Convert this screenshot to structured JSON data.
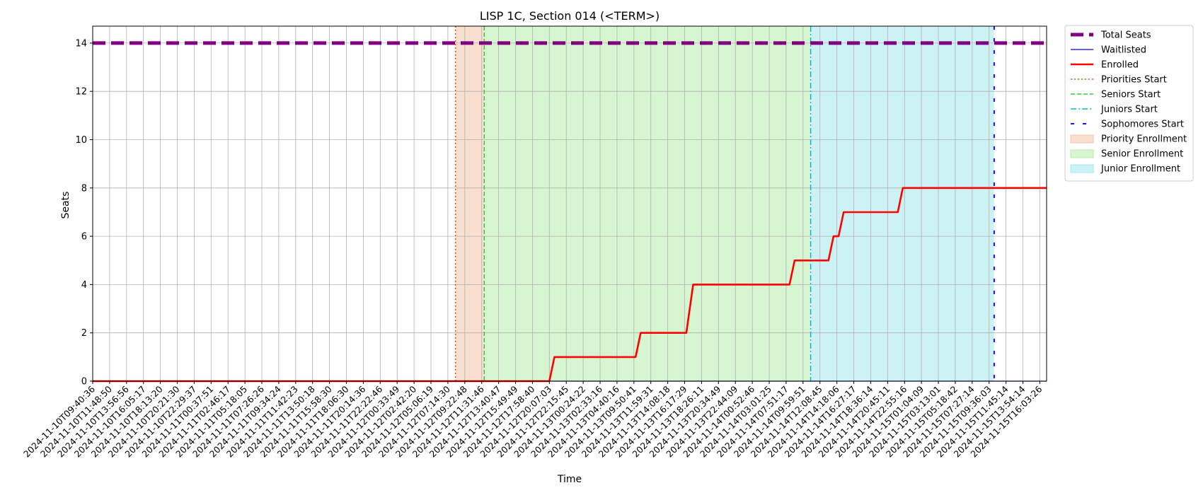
{
  "chart_data": {
    "type": "line",
    "title": "LISP 1C, Section 014 (<TERM>)",
    "xlabel": "Time",
    "ylabel": "Seats",
    "ylim": [
      0,
      14.7
    ],
    "y_ticks": [
      0,
      2,
      4,
      6,
      8,
      10,
      12,
      14
    ],
    "x_tick_labels": [
      "2024-11-10T09:40:36",
      "2024-11-10T11:48:50",
      "2024-11-10T13:56:56",
      "2024-11-10T16:05:17",
      "2024-11-10T18:13:20",
      "2024-11-10T20:21:30",
      "2024-11-10T22:29:37",
      "2024-11-11T00:37:51",
      "2024-11-11T02:46:17",
      "2024-11-11T05:18:05",
      "2024-11-11T07:26:26",
      "2024-11-11T09:34:24",
      "2024-11-11T11:42:23",
      "2024-11-11T13:50:18",
      "2024-11-11T15:58:30",
      "2024-11-11T18:06:30",
      "2024-11-11T20:14:36",
      "2024-11-11T22:22:46",
      "2024-11-12T00:33:49",
      "2024-11-12T02:42:20",
      "2024-11-12T05:06:19",
      "2024-11-12T07:14:30",
      "2024-11-12T09:22:48",
      "2024-11-12T11:31:46",
      "2024-11-12T13:40:47",
      "2024-11-12T15:49:49",
      "2024-11-12T17:58:40",
      "2024-11-12T20:07:03",
      "2024-11-12T22:15:45",
      "2024-11-13T00:24:22",
      "2024-11-13T02:33:16",
      "2024-11-13T04:40:16",
      "2024-11-13T09:50:41",
      "2024-11-13T11:59:31",
      "2024-11-13T14:08:18",
      "2024-11-13T16:17:29",
      "2024-11-13T18:26:11",
      "2024-11-13T20:34:49",
      "2024-11-13T22:44:09",
      "2024-11-14T00:52:46",
      "2024-11-14T03:01:25",
      "2024-11-14T07:51:17",
      "2024-11-14T09:59:51",
      "2024-11-14T12:08:45",
      "2024-11-14T14:18:06",
      "2024-11-14T16:27:17",
      "2024-11-14T18:36:14",
      "2024-11-14T20:45:11",
      "2024-11-14T22:55:16",
      "2024-11-15T01:04:09",
      "2024-11-15T03:13:01",
      "2024-11-15T05:18:42",
      "2024-11-15T07:27:14",
      "2024-11-15T09:36:03",
      "2024-11-15T11:45:14",
      "2024-11-15T13:54:14",
      "2024-11-15T16:03:26"
    ],
    "x_range": [
      0,
      56.4
    ],
    "grid": true,
    "legend_position": "outside upper right",
    "series": [
      {
        "name": "Total Seats",
        "style": "dashed-thick",
        "color": "#800080",
        "points": [
          [
            0,
            14
          ],
          [
            56.4,
            14
          ]
        ]
      },
      {
        "name": "Waitlisted",
        "style": "solid-thin",
        "color": "#0000ff",
        "points": [
          [
            0,
            0
          ],
          [
            56.4,
            0
          ]
        ]
      },
      {
        "name": "Enrolled",
        "style": "solid-thick",
        "color": "#ff0000",
        "points": [
          [
            0,
            0
          ],
          [
            27,
            0
          ],
          [
            27.3,
            1
          ],
          [
            32.1,
            1
          ],
          [
            32.4,
            2
          ],
          [
            35.1,
            2
          ],
          [
            35.5,
            4
          ],
          [
            41.2,
            4
          ],
          [
            41.5,
            5
          ],
          [
            43.5,
            5
          ],
          [
            43.8,
            6
          ],
          [
            44.1,
            6
          ],
          [
            44.4,
            7
          ],
          [
            47.6,
            7
          ],
          [
            47.9,
            8
          ],
          [
            56.4,
            8
          ]
        ]
      }
    ],
    "vertical_lines": [
      {
        "name": "Priorities Start",
        "x": 21.45,
        "color": "#ff4500",
        "style": "dotted"
      },
      {
        "name": "Seniors Start",
        "x": 23.15,
        "color": "#32cd32",
        "style": "dashed"
      },
      {
        "name": "Juniors Start",
        "x": 42.45,
        "color": "#00bcd4",
        "style": "dashdot"
      },
      {
        "name": "Sophomores Start",
        "x": 53.3,
        "color": "#3300ff",
        "style": "loosely-dashed"
      }
    ],
    "shaded_regions": [
      {
        "name": "Priority Enrollment",
        "x0": 21.45,
        "x1": 23.15,
        "color": "#f4c4a8"
      },
      {
        "name": "Senior Enrollment",
        "x0": 23.15,
        "x1": 42.45,
        "color": "#b8ecab"
      },
      {
        "name": "Junior Enrollment",
        "x0": 42.45,
        "x1": 53.3,
        "color": "#a4e8ee"
      }
    ]
  }
}
